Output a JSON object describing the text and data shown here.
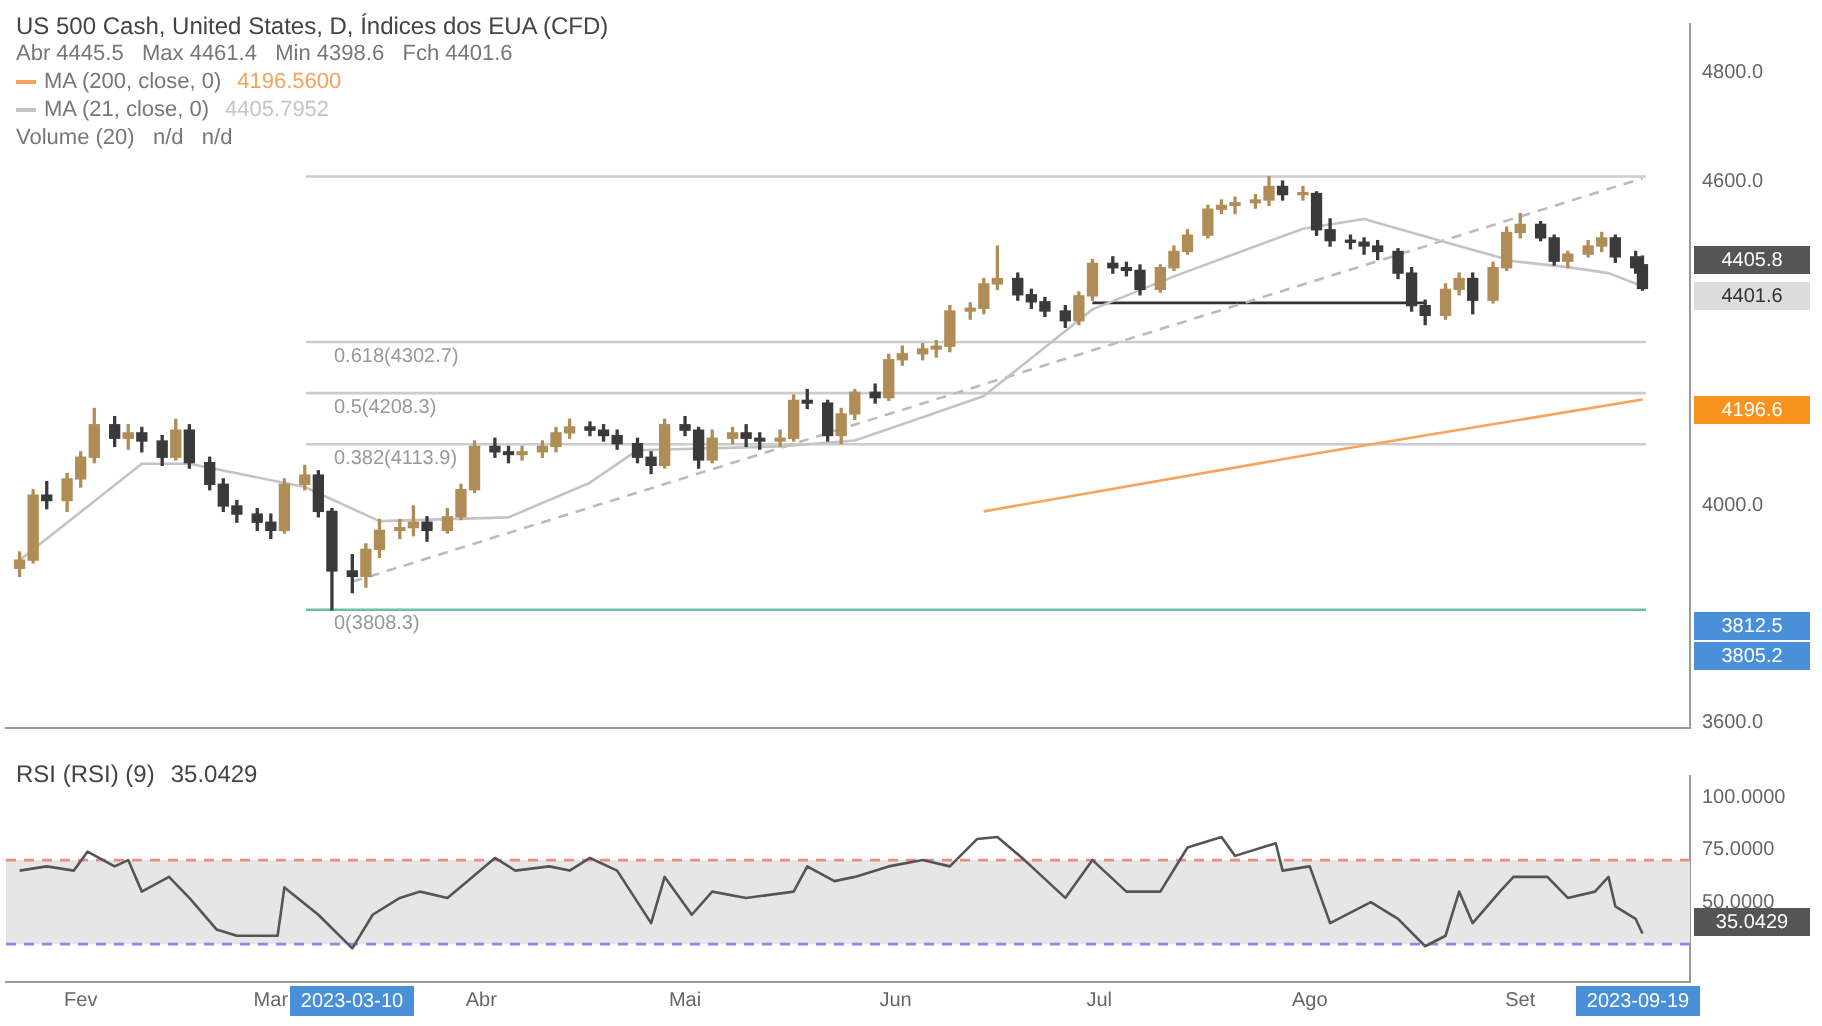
{
  "chart_data": [
    {
      "type": "candlestick",
      "title": "US 500 Cash, United States, D, Índices dos EUA (CFD)",
      "subtitle": "Abr 4445.5   Max 4461.4   Min 4398.6   Fch 4401.6",
      "xlim": [
        "2023-01-21",
        "2023-09-26"
      ],
      "ylim": [
        3590,
        4890
      ],
      "yticks": [
        {
          "value": 3600,
          "label": "3600.0"
        },
        {
          "value": 4000,
          "label": "4000.0"
        },
        {
          "value": 4600,
          "label": "4600.0"
        },
        {
          "value": 4800,
          "label": "4800.0"
        }
      ],
      "tick_labels": "y",
      "legend": "top left",
      "series": [
        {
          "x": [
            "2023-01-23",
            "2023-01-25",
            "2023-01-27",
            "2023-01-30",
            "2023-02-01",
            "2023-02-03",
            "2023-02-06",
            "2023-02-08",
            "2023-02-10",
            "2023-02-13",
            "2023-02-15",
            "2023-02-17",
            "2023-02-20",
            "2023-02-22",
            "2023-02-24",
            "2023-02-27",
            "2023-03-01",
            "2023-03-03",
            "2023-03-06",
            "2023-03-08",
            "2023-03-10",
            "2023-03-13",
            "2023-03-15",
            "2023-03-17",
            "2023-03-20",
            "2023-03-22",
            "2023-03-24",
            "2023-03-27",
            "2023-03-29",
            "2023-03-31",
            "2023-04-03",
            "2023-04-05",
            "2023-04-07",
            "2023-04-10",
            "2023-04-12",
            "2023-04-14",
            "2023-04-17",
            "2023-04-19",
            "2023-04-21",
            "2023-04-24",
            "2023-04-26",
            "2023-04-28",
            "2023-05-01",
            "2023-05-03",
            "2023-05-05",
            "2023-05-08",
            "2023-05-10",
            "2023-05-12",
            "2023-05-15",
            "2023-05-17",
            "2023-05-19",
            "2023-05-22",
            "2023-05-24",
            "2023-05-26",
            "2023-05-29",
            "2023-05-31",
            "2023-06-02",
            "2023-06-05",
            "2023-06-07",
            "2023-06-09",
            "2023-06-12",
            "2023-06-14",
            "2023-06-16",
            "2023-06-19",
            "2023-06-21",
            "2023-06-23",
            "2023-06-26",
            "2023-06-28",
            "2023-06-30",
            "2023-07-03",
            "2023-07-05",
            "2023-07-07",
            "2023-07-10",
            "2023-07-12",
            "2023-07-14",
            "2023-07-17",
            "2023-07-19",
            "2023-07-21",
            "2023-07-24",
            "2023-07-26",
            "2023-07-28",
            "2023-07-31",
            "2023-08-02",
            "2023-08-04",
            "2023-08-07",
            "2023-08-09",
            "2023-08-11",
            "2023-08-14",
            "2023-08-16",
            "2023-08-18",
            "2023-08-21",
            "2023-08-23",
            "2023-08-25",
            "2023-08-28",
            "2023-08-30",
            "2023-09-01",
            "2023-09-04",
            "2023-09-06",
            "2023-09-08",
            "2023-09-11",
            "2023-09-13",
            "2023-09-15",
            "2023-09-18",
            "2023-09-19"
          ],
          "ohlc": [
            [
              3885,
              3915,
              3870,
              3900
            ],
            [
              3900,
              4030,
              3895,
              4020
            ],
            [
              4020,
              4045,
              3995,
              4010
            ],
            [
              4010,
              4060,
              3990,
              4050
            ],
            [
              4050,
              4100,
              4035,
              4090
            ],
            [
              4090,
              4180,
              4080,
              4150
            ],
            [
              4150,
              4165,
              4110,
              4125
            ],
            [
              4125,
              4150,
              4105,
              4135
            ],
            [
              4135,
              4145,
              4100,
              4120
            ],
            [
              4120,
              4130,
              4075,
              4090
            ],
            [
              4090,
              4160,
              4085,
              4140
            ],
            [
              4140,
              4150,
              4070,
              4080
            ],
            [
              4080,
              4090,
              4030,
              4040
            ],
            [
              4040,
              4050,
              3990,
              4000
            ],
            [
              4000,
              4010,
              3970,
              3985
            ],
            [
              3985,
              3995,
              3955,
              3970
            ],
            [
              3970,
              3985,
              3940,
              3955
            ],
            [
              3955,
              4050,
              3950,
              4040
            ],
            [
              4040,
              4075,
              4030,
              4057
            ],
            [
              4057,
              4065,
              3980,
              3990
            ],
            [
              3990,
              3995,
              3808.3,
              3880
            ],
            [
              3880,
              3910,
              3840,
              3870
            ],
            [
              3870,
              3930,
              3850,
              3920
            ],
            [
              3920,
              3975,
              3905,
              3955
            ],
            [
              3955,
              3975,
              3940,
              3960
            ],
            [
              3960,
              4000,
              3945,
              3970
            ],
            [
              3970,
              3980,
              3935,
              3955
            ],
            [
              3955,
              3995,
              3950,
              3980
            ],
            [
              3980,
              4040,
              3975,
              4030
            ],
            [
              4030,
              4120,
              4025,
              4110
            ],
            [
              4110,
              4125,
              4090,
              4100
            ],
            [
              4100,
              4110,
              4080,
              4095
            ],
            [
              4095,
              4110,
              4085,
              4100
            ],
            [
              4100,
              4120,
              4090,
              4110
            ],
            [
              4110,
              4145,
              4100,
              4135
            ],
            [
              4135,
              4160,
              4125,
              4146
            ],
            [
              4146,
              4155,
              4130,
              4140
            ],
            [
              4140,
              4150,
              4120,
              4130
            ],
            [
              4130,
              4140,
              4105,
              4115
            ],
            [
              4115,
              4125,
              4080,
              4090
            ],
            [
              4090,
              4100,
              4060,
              4075
            ],
            [
              4075,
              4160,
              4070,
              4150
            ],
            [
              4150,
              4165,
              4130,
              4140
            ],
            [
              4140,
              4145,
              4070,
              4085
            ],
            [
              4085,
              4140,
              4080,
              4125
            ],
            [
              4125,
              4145,
              4115,
              4135
            ],
            [
              4135,
              4150,
              4110,
              4125
            ],
            [
              4125,
              4135,
              4105,
              4120
            ],
            [
              4120,
              4140,
              4110,
              4125
            ],
            [
              4125,
              4205,
              4120,
              4195
            ],
            [
              4195,
              4215,
              4180,
              4190
            ],
            [
              4190,
              4195,
              4120,
              4130
            ],
            [
              4130,
              4180,
              4115,
              4170
            ],
            [
              4170,
              4215,
              4160,
              4210
            ],
            [
              4210,
              4225,
              4190,
              4200
            ],
            [
              4200,
              4280,
              4195,
              4270
            ],
            [
              4270,
              4295,
              4260,
              4281
            ],
            [
              4281,
              4300,
              4270,
              4290
            ],
            [
              4290,
              4305,
              4275,
              4295
            ],
            [
              4295,
              4370,
              4285,
              4360
            ],
            [
              4360,
              4375,
              4345,
              4365
            ],
            [
              4365,
              4420,
              4355,
              4410
            ],
            [
              4410,
              4480,
              4400,
              4420
            ],
            [
              4420,
              4430,
              4380,
              4390
            ],
            [
              4390,
              4400,
              4365,
              4377
            ],
            [
              4377,
              4385,
              4350,
              4360
            ],
            [
              4360,
              4370,
              4330,
              4342
            ],
            [
              4342,
              4395,
              4335,
              4388
            ],
            [
              4388,
              4455,
              4380,
              4448
            ],
            [
              4448,
              4460,
              4430,
              4440
            ],
            [
              4440,
              4450,
              4425,
              4435
            ],
            [
              4435,
              4445,
              4390,
              4400
            ],
            [
              4400,
              4445,
              4395,
              4440
            ],
            [
              4440,
              4480,
              4435,
              4470
            ],
            [
              4470,
              4510,
              4465,
              4500
            ],
            [
              4500,
              4555,
              4495,
              4548
            ],
            [
              4548,
              4565,
              4540,
              4555
            ],
            [
              4555,
              4570,
              4540,
              4560
            ],
            [
              4560,
              4575,
              4550,
              4565
            ],
            [
              4565,
              4608,
              4555,
              4590
            ],
            [
              4590,
              4600,
              4565,
              4575
            ],
            [
              4575,
              4590,
              4565,
              4577
            ],
            [
              4577,
              4580,
              4500,
              4510
            ],
            [
              4510,
              4530,
              4480,
              4490
            ],
            [
              4490,
              4500,
              4475,
              4487
            ],
            [
              4487,
              4495,
              4465,
              4480
            ],
            [
              4480,
              4490,
              4455,
              4470
            ],
            [
              4470,
              4475,
              4420,
              4430
            ],
            [
              4430,
              4440,
              4360,
              4370
            ],
            [
              4370,
              4380,
              4335,
              4352
            ],
            [
              4352,
              4410,
              4345,
              4400
            ],
            [
              4400,
              4430,
              4390,
              4420
            ],
            [
              4420,
              4430,
              4355,
              4380
            ],
            [
              4380,
              4450,
              4375,
              4440
            ],
            [
              4440,
              4515,
              4435,
              4505
            ],
            [
              4505,
              4540,
              4495,
              4520
            ],
            [
              4520,
              4525,
              4490,
              4495
            ],
            [
              4495,
              4500,
              4445,
              4452
            ],
            [
              4452,
              4470,
              4440,
              4465
            ],
            [
              4465,
              4490,
              4460,
              4480
            ],
            [
              4480,
              4505,
              4470,
              4495
            ],
            [
              4495,
              4500,
              4450,
              4460
            ],
            [
              4460,
              4470,
              4430,
              4440
            ],
            [
              4445.5,
              4461.4,
              4398.6,
              4401.6
            ]
          ],
          "colors": [
            "#b08d57",
            "#b08d57",
            "#3a3a3a",
            "#b08d57",
            "#b08d57",
            "#b08d57",
            "#3a3a3a",
            "#b08d57",
            "#3a3a3a",
            "#3a3a3a",
            "#b08d57",
            "#3a3a3a",
            "#3a3a3a",
            "#3a3a3a",
            "#3a3a3a",
            "#3a3a3a",
            "#3a3a3a",
            "#b08d57",
            "#b08d57",
            "#3a3a3a",
            "#3a3a3a",
            "#3a3a3a",
            "#b08d57",
            "#b08d57",
            "#b08d57",
            "#b08d57",
            "#3a3a3a",
            "#b08d57",
            "#b08d57",
            "#b08d57",
            "#3a3a3a",
            "#3a3a3a",
            "#b08d57",
            "#b08d57",
            "#b08d57",
            "#b08d57",
            "#3a3a3a",
            "#3a3a3a",
            "#3a3a3a",
            "#3a3a3a",
            "#3a3a3a",
            "#b08d57",
            "#3a3a3a",
            "#3a3a3a",
            "#b08d57",
            "#b08d57",
            "#3a3a3a",
            "#3a3a3a",
            "#b08d57",
            "#b08d57",
            "#3a3a3a",
            "#3a3a3a",
            "#b08d57",
            "#b08d57",
            "#3a3a3a",
            "#b08d57",
            "#b08d57",
            "#b08d57",
            "#b08d57",
            "#b08d57",
            "#b08d57",
            "#b08d57",
            "#b08d57",
            "#3a3a3a",
            "#3a3a3a",
            "#3a3a3a",
            "#3a3a3a",
            "#b08d57",
            "#b08d57",
            "#3a3a3a",
            "#3a3a3a",
            "#3a3a3a",
            "#b08d57",
            "#b08d57",
            "#b08d57",
            "#b08d57",
            "#b08d57",
            "#b08d57",
            "#b08d57",
            "#b08d57",
            "#3a3a3a",
            "#b08d57",
            "#3a3a3a",
            "#3a3a3a",
            "#3a3a3a",
            "#3a3a3a",
            "#3a3a3a",
            "#3a3a3a",
            "#3a3a3a",
            "#3a3a3a",
            "#b08d57",
            "#b08d57",
            "#3a3a3a",
            "#b08d57",
            "#b08d57",
            "#b08d57",
            "#3a3a3a",
            "#3a3a3a",
            "#b08d57",
            "#b08d57",
            "#b08d57",
            "#3a3a3a",
            "#3a3a3a",
            "#3a3a3a"
          ]
        },
        {
          "type": "line",
          "name": "MA (200, close, 0)",
          "color": "#f7a35c",
          "x": [
            "2023-06-14",
            "2023-08-01",
            "2023-09-19"
          ],
          "values": [
            3990,
            4095,
            4196.56
          ]
        },
        {
          "type": "line",
          "name": "MA (21, close, 0)",
          "color": "#c4c4c4",
          "x": [
            "2023-01-23",
            "2023-02-10",
            "2023-02-17",
            "2023-03-06",
            "2023-03-17",
            "2023-04-05",
            "2023-04-17",
            "2023-04-24",
            "2023-05-15",
            "2023-05-26",
            "2023-06-05",
            "2023-06-14",
            "2023-06-30",
            "2023-07-12",
            "2023-07-31",
            "2023-08-09",
            "2023-08-21",
            "2023-08-31",
            "2023-09-08",
            "2023-09-14",
            "2023-09-19"
          ],
          "values": [
            3900,
            4078,
            4078,
            4035,
            3972,
            3979,
            4043,
            4103,
            4110,
            4121,
            4164,
            4203,
            4363,
            4424,
            4512,
            4530,
            4487,
            4452,
            4441,
            4430,
            4405.7952
          ]
        },
        {
          "type": "line",
          "color": "#bbbbbb",
          "line_style": "dashed",
          "x": [
            "2023-03-13",
            "2023-09-19"
          ],
          "values": [
            3860,
            4605
          ]
        },
        {
          "type": "line",
          "color": "#333333",
          "x": [
            "2023-06-30",
            "2023-08-18"
          ],
          "values": [
            4375,
            4375
          ]
        }
      ],
      "ref_lines": [
        {
          "axis": "y",
          "value": 4608.3,
          "color": "#cccccc"
        },
        {
          "axis": "y",
          "value": 4302.7,
          "label": "0.618(4302.7)",
          "color": "#cccccc"
        },
        {
          "axis": "y",
          "value": 4208.3,
          "label": "0.5(4208.3)",
          "color": "#cccccc"
        },
        {
          "axis": "y",
          "value": 4113.9,
          "label": "0.382(4113.9)",
          "color": "#cccccc"
        },
        {
          "axis": "y",
          "value": 3808.3,
          "label": "0(3808.3)",
          "color": "#6cbfa8"
        }
      ],
      "annotations": [
        "4196.5600",
        "4405.7952",
        "Volume (20)   n/d   n/d",
        "4405.8",
        "4401.6",
        "4196.6",
        "3812.5",
        "3805.2"
      ]
    },
    {
      "type": "line",
      "title": "RSI (RSI) (9)",
      "xlim": [
        "2023-01-21",
        "2023-09-26"
      ],
      "xticks": [
        {
          "value": "2023-02-01",
          "label": "Fev"
        },
        {
          "value": "2023-03-01",
          "label": "Mar"
        },
        {
          "value": "2023-04-01",
          "label": "Abr"
        },
        {
          "value": "2023-05-01",
          "label": "Mai"
        },
        {
          "value": "2023-06-01",
          "label": "Jun"
        },
        {
          "value": "2023-07-01",
          "label": "Jul"
        },
        {
          "value": "2023-08-01",
          "label": "Ago"
        },
        {
          "value": "2023-09-01",
          "label": "Set"
        }
      ],
      "ylim": [
        12,
        110
      ],
      "yticks": [
        {
          "value": 50,
          "label": "50.0000"
        },
        {
          "value": 75,
          "label": "75.0000"
        },
        {
          "value": 100,
          "label": "100.0000"
        }
      ],
      "series": [
        {
          "color": "#555555",
          "x": [
            "2023-01-23",
            "2023-01-27",
            "2023-01-31",
            "2023-02-02",
            "2023-02-06",
            "2023-02-08",
            "2023-02-10",
            "2023-02-14",
            "2023-02-17",
            "2023-02-21",
            "2023-02-24",
            "2023-03-02",
            "2023-03-03",
            "2023-03-08",
            "2023-03-13",
            "2023-03-16",
            "2023-03-20",
            "2023-03-23",
            "2023-03-27",
            "2023-03-30",
            "2023-04-03",
            "2023-04-06",
            "2023-04-11",
            "2023-04-14",
            "2023-04-17",
            "2023-04-21",
            "2023-04-26",
            "2023-04-28",
            "2023-05-02",
            "2023-05-05",
            "2023-05-10",
            "2023-05-17",
            "2023-05-19",
            "2023-05-23",
            "2023-05-26",
            "2023-05-31",
            "2023-06-05",
            "2023-06-09",
            "2023-06-13",
            "2023-06-16",
            "2023-06-20",
            "2023-06-26",
            "2023-06-30",
            "2023-07-05",
            "2023-07-10",
            "2023-07-14",
            "2023-07-19",
            "2023-07-21",
            "2023-07-27",
            "2023-07-28",
            "2023-08-01",
            "2023-08-04",
            "2023-08-10",
            "2023-08-14",
            "2023-08-18",
            "2023-08-21",
            "2023-08-23",
            "2023-08-25",
            "2023-08-29",
            "2023-08-31",
            "2023-09-05",
            "2023-09-08",
            "2023-09-12",
            "2023-09-14",
            "2023-09-15",
            "2023-09-18",
            "2023-09-19"
          ],
          "values": [
            65,
            67,
            65,
            74,
            67,
            70,
            55,
            62,
            52,
            37,
            34,
            34,
            57,
            44,
            28,
            44,
            52,
            55,
            52,
            60,
            71,
            65,
            67,
            65,
            71,
            65,
            40,
            62,
            44,
            55,
            52,
            55,
            67,
            60,
            62,
            67,
            70,
            67,
            80,
            81,
            70,
            52,
            70,
            55,
            55,
            76,
            81,
            72,
            78,
            65,
            67,
            40,
            50,
            42,
            29,
            34,
            55,
            40,
            55,
            62,
            62,
            52,
            55,
            62,
            48,
            42,
            35.0429
          ]
        }
      ],
      "ref_lines": [
        {
          "axis": "y",
          "value": 70,
          "color": "#f08a8a",
          "line_style": "dashed"
        },
        {
          "axis": "y",
          "value": 30,
          "color": "#8a8af0",
          "line_style": "dashed"
        }
      ],
      "bands": [
        {
          "axis": "y",
          "from": 30,
          "to": 70,
          "color": "#e6e6e6"
        }
      ],
      "annotations": [
        "35.0429",
        "35.0429",
        "2023-03-10",
        "2023-09-19"
      ]
    }
  ]
}
